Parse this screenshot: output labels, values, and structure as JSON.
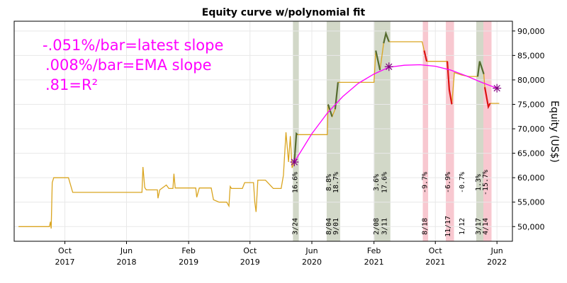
{
  "chart_data": {
    "type": "line",
    "title": "Equity curve w/polynomial fit",
    "ylabel": "Equity (US$)",
    "ylim": [
      47000,
      92000
    ],
    "y_ticks": [
      50000,
      55000,
      60000,
      65000,
      70000,
      75000,
      80000,
      85000,
      90000
    ],
    "y_tick_labels": [
      "50,000",
      "55,000",
      "60,000",
      "65,000",
      "70,000",
      "75,000",
      "80,000",
      "85,000",
      "90,000"
    ],
    "x_ticks": [
      {
        "date": "2017-10-01",
        "label1": "Oct",
        "label2": "2017"
      },
      {
        "date": "2018-06-01",
        "label1": "Jun",
        "label2": "2018"
      },
      {
        "date": "2019-02-01",
        "label1": "Feb",
        "label2": "2019"
      },
      {
        "date": "2019-10-01",
        "label1": "Oct",
        "label2": "2019"
      },
      {
        "date": "2020-06-01",
        "label1": "Jun",
        "label2": "2020"
      },
      {
        "date": "2021-02-01",
        "label1": "Feb",
        "label2": "2021"
      },
      {
        "date": "2021-10-01",
        "label1": "Oct",
        "label2": "2021"
      },
      {
        "date": "2022-06-01",
        "label1": "Jun",
        "label2": "2022"
      }
    ],
    "xlim": [
      "2017-03-15",
      "2022-08-01"
    ],
    "grid": true,
    "annotations": [
      "-.051%/bar=latest slope",
      ".008%/bar=EMA slope",
      ".81=R²"
    ],
    "colors": {
      "equity": "#daa520",
      "gain": "#556b2f",
      "loss": "#dd1111",
      "fit": "#ff00ff",
      "gain_band": "#d2d8c8",
      "loss_band": "#f8c8d0"
    },
    "equity_curve": [
      [
        "2017-04-01",
        50000
      ],
      [
        "2017-08-01",
        50000
      ],
      [
        "2017-08-05",
        51000
      ],
      [
        "2017-08-08",
        49600
      ],
      [
        "2017-08-12",
        59000
      ],
      [
        "2017-08-18",
        60000
      ],
      [
        "2017-10-15",
        60000
      ],
      [
        "2017-11-01",
        57000
      ],
      [
        "2018-08-01",
        57000
      ],
      [
        "2018-08-05",
        62200
      ],
      [
        "2018-08-12",
        58000
      ],
      [
        "2018-08-18",
        57500
      ],
      [
        "2018-10-01",
        57500
      ],
      [
        "2018-10-03",
        55800
      ],
      [
        "2018-10-10",
        57500
      ],
      [
        "2018-11-05",
        58500
      ],
      [
        "2018-11-15",
        57800
      ],
      [
        "2018-12-01",
        57800
      ],
      [
        "2018-12-05",
        60800
      ],
      [
        "2018-12-10",
        57900
      ],
      [
        "2019-03-01",
        57900
      ],
      [
        "2019-03-05",
        56000
      ],
      [
        "2019-03-15",
        57900
      ],
      [
        "2019-05-01",
        57900
      ],
      [
        "2019-05-10",
        55500
      ],
      [
        "2019-06-01",
        55000
      ],
      [
        "2019-07-01",
        55000
      ],
      [
        "2019-07-10",
        54200
      ],
      [
        "2019-07-15",
        58200
      ],
      [
        "2019-07-20",
        57800
      ],
      [
        "2019-09-01",
        57800
      ],
      [
        "2019-09-10",
        59000
      ],
      [
        "2019-10-15",
        59000
      ],
      [
        "2019-10-20",
        55000
      ],
      [
        "2019-10-25",
        53000
      ],
      [
        "2019-11-01",
        59500
      ],
      [
        "2019-12-01",
        59500
      ],
      [
        "2020-01-01",
        57800
      ],
      [
        "2020-02-01",
        57800
      ],
      [
        "2020-02-10",
        60500
      ],
      [
        "2020-02-20",
        69300
      ],
      [
        "2020-03-01",
        63200
      ],
      [
        "2020-03-08",
        68500
      ],
      [
        "2020-03-15",
        62000
      ],
      [
        "2020-03-24",
        63200
      ],
      [
        "2020-04-01",
        69000
      ],
      [
        "2020-04-05",
        68800
      ],
      [
        "2020-08-01",
        68800
      ],
      [
        "2020-08-04",
        75000
      ],
      [
        "2020-08-20",
        72500
      ],
      [
        "2020-09-01",
        74000
      ],
      [
        "2020-09-12",
        79500
      ],
      [
        "2021-02-01",
        79500
      ],
      [
        "2021-02-08",
        86000
      ],
      [
        "2021-02-25",
        82000
      ],
      [
        "2021-03-11",
        87500
      ],
      [
        "2021-03-20",
        89500
      ],
      [
        "2021-04-01",
        87800
      ],
      [
        "2021-08-10",
        87800
      ],
      [
        "2021-08-18",
        86000
      ],
      [
        "2021-08-28",
        83800
      ],
      [
        "2021-11-17",
        83800
      ],
      [
        "2021-11-25",
        78000
      ],
      [
        "2021-12-05",
        75000
      ],
      [
        "2021-12-15",
        81500
      ],
      [
        "2022-01-12",
        81000
      ],
      [
        "2022-02-10",
        80700
      ],
      [
        "2022-03-17",
        80700
      ],
      [
        "2022-03-25",
        83800
      ],
      [
        "2022-04-10",
        81200
      ],
      [
        "2022-04-14",
        78500
      ],
      [
        "2022-04-28",
        74500
      ],
      [
        "2022-05-05",
        75200
      ],
      [
        "2022-06-10",
        75200
      ]
    ],
    "gain_segments": [
      [
        "2020-03-24",
        "2020-04-05"
      ],
      [
        "2020-08-04",
        "2020-08-25"
      ],
      [
        "2020-09-01",
        "2020-09-15"
      ],
      [
        "2021-02-08",
        "2021-03-01"
      ],
      [
        "2021-03-11",
        "2021-04-01"
      ],
      [
        "2022-03-17",
        "2022-04-10"
      ]
    ],
    "loss_segments": [
      [
        "2021-08-18",
        "2021-08-28"
      ],
      [
        "2021-11-17",
        "2021-12-08"
      ],
      [
        "2022-04-14",
        "2022-05-05"
      ]
    ],
    "fit_curve": [
      [
        "2020-03-24",
        63200
      ],
      [
        "2020-06-01",
        69000
      ],
      [
        "2020-08-01",
        73200
      ],
      [
        "2020-10-01",
        76600
      ],
      [
        "2020-12-01",
        79300
      ],
      [
        "2021-02-01",
        81200
      ],
      [
        "2021-04-01",
        82600
      ],
      [
        "2021-06-01",
        83000
      ],
      [
        "2021-08-01",
        83100
      ],
      [
        "2021-10-01",
        82800
      ],
      [
        "2021-12-01",
        82000
      ],
      [
        "2022-02-01",
        80800
      ],
      [
        "2022-04-01",
        79500
      ],
      [
        "2022-06-01",
        78300
      ]
    ],
    "fit_markers": [
      [
        "2020-03-24",
        63200
      ],
      [
        "2021-04-01",
        82700
      ],
      [
        "2022-06-01",
        78300
      ]
    ],
    "trade_bands": [
      {
        "start": "2020-03-24",
        "end": "2020-04-05",
        "kind": "gain",
        "date_label": "3/24",
        "pct_label": "16.6%"
      },
      {
        "start": "2020-08-04",
        "end": "2020-08-25",
        "kind": "gain",
        "date_label": "8/04",
        "pct_label": "8.8%"
      },
      {
        "start": "2020-09-01",
        "end": "2020-09-15",
        "kind": "gain",
        "date_label": "9/01",
        "pct_label": "18.7%"
      },
      {
        "start": "2021-02-08",
        "end": "2021-03-01",
        "kind": "gain",
        "date_label": "2/08",
        "pct_label": "3.6%"
      },
      {
        "start": "2021-03-11",
        "end": "2021-04-01",
        "kind": "gain",
        "date_label": "3/11",
        "pct_label": "17.6%"
      },
      {
        "start": "2021-08-18",
        "end": "2021-08-28",
        "kind": "loss",
        "date_label": "8/18",
        "pct_label": "-9.7%"
      },
      {
        "start": "2021-11-17",
        "end": "2021-12-08",
        "kind": "loss",
        "date_label": "11/17",
        "pct_label": "-6.9%"
      },
      {
        "start": "2022-01-12",
        "end": "2022-01-12",
        "kind": "none",
        "date_label": "1/12",
        "pct_label": "-0.7%"
      },
      {
        "start": "2022-03-17",
        "end": "2022-04-10",
        "kind": "gain",
        "date_label": "3/17",
        "pct_label": "1.3%"
      },
      {
        "start": "2022-04-14",
        "end": "2022-05-05",
        "kind": "loss",
        "date_label": "4/14",
        "pct_label": "-15.7%"
      }
    ]
  }
}
